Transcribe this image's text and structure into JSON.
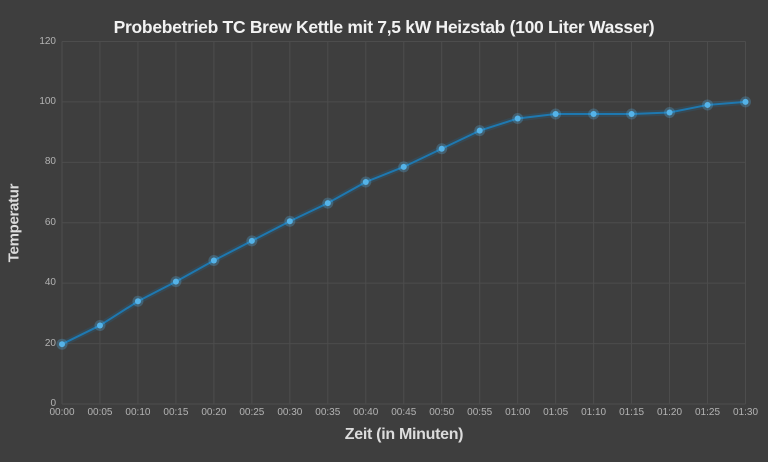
{
  "chart_data": {
    "type": "line",
    "title": "Probebetrieb TC Brew Kettle mit 7,5 kW Heizstab (100 Liter Wasser)",
    "xlabel": "Zeit (in Minuten)",
    "ylabel": "Temperatur",
    "categories": [
      "00:00",
      "00:05",
      "00:10",
      "00:15",
      "00:20",
      "00:25",
      "00:30",
      "00:35",
      "00:40",
      "00:45",
      "00:50",
      "00:55",
      "01:00",
      "01:05",
      "01:10",
      "01:15",
      "01:20",
      "01:25",
      "01:30"
    ],
    "series": [
      {
        "name": "Temperatur",
        "values": [
          19.8,
          26,
          34,
          40.5,
          47.5,
          54,
          60.5,
          66.5,
          73.5,
          78.5,
          84.5,
          90.5,
          94.5,
          96,
          96,
          96,
          96.5,
          99,
          100
        ]
      }
    ],
    "ylim": [
      0,
      120
    ],
    "yticks": [
      0,
      20,
      40,
      60,
      80,
      100,
      120
    ],
    "grid": true,
    "legend": false,
    "marker": "circle",
    "colors": {
      "background": "#3e3e3e",
      "gridline": "#4d4d4d",
      "line": "#1e78b0",
      "line_glow": "#1e78b0",
      "marker": "#55b3e8",
      "tick_label": "#b3b3b3",
      "title": "#f2f2f2",
      "axis_label": "#dcdcdc"
    }
  }
}
